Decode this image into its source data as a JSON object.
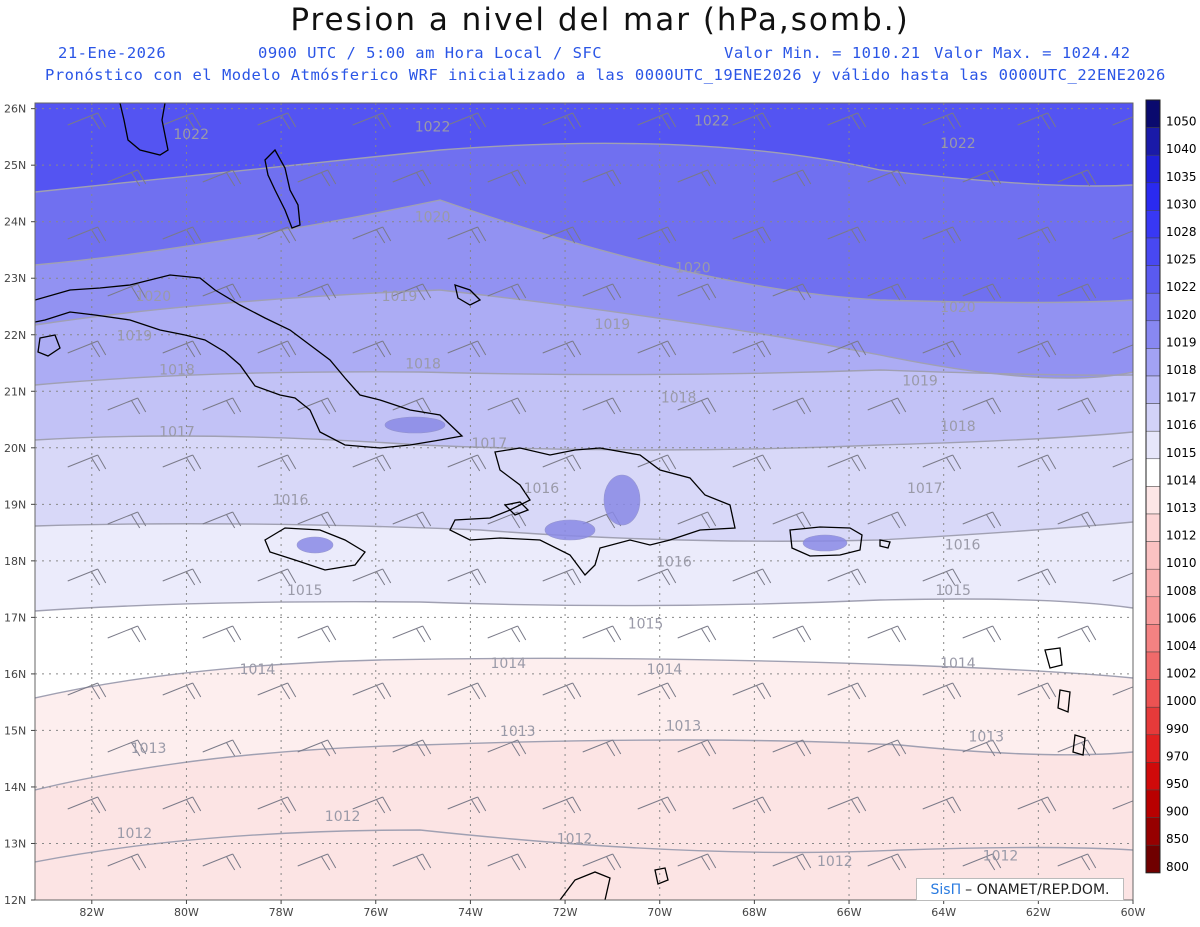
{
  "title": "Presion a nivel del mar (hPa,somb.)",
  "subtitle": {
    "date": "21-Ene-2026",
    "time": "0900 UTC / 5:00 am Hora Local / SFC",
    "valmin": "Valor Min. = 1010.21",
    "valmax": "Valor Max. = 1024.42",
    "model": "Pronóstico con el Modelo Atmósferico WRF inicializado a las 0000UTC_19ENE2026 y válido hasta las  0000UTC_22ENE2026"
  },
  "axes": {
    "lat_labels": [
      "26N",
      "25N",
      "24N",
      "23N",
      "22N",
      "21N",
      "20N",
      "19N",
      "18N",
      "17N",
      "16N",
      "15N",
      "14N",
      "13N",
      "12N"
    ],
    "lon_labels": [
      "82W",
      "80W",
      "78W",
      "76W",
      "74W",
      "72W",
      "70W",
      "68W",
      "66W",
      "64W",
      "62W",
      "60W"
    ]
  },
  "colorbar": {
    "levels": [
      "1050",
      "1040",
      "1035",
      "1030",
      "1028",
      "1025",
      "1022",
      "1020",
      "1019",
      "1018",
      "1017",
      "1016",
      "1015",
      "1014",
      "1013",
      "1012",
      "1010",
      "1008",
      "1006",
      "1004",
      "1002",
      "1000",
      "990",
      "970",
      "950",
      "900",
      "850",
      "800"
    ],
    "colors": [
      "#0a0a6e",
      "#1a1aa8",
      "#2020d8",
      "#2a2af0",
      "#3838f4",
      "#4848f2",
      "#5a5af0",
      "#6e6ef0",
      "#8888f2",
      "#a2a2f4",
      "#babaf6",
      "#d2d2f8",
      "#e6e6fa",
      "#ffffff",
      "#fde6e6",
      "#fcd4d4",
      "#fbc2c2",
      "#f9b0b0",
      "#f79a9a",
      "#f48282",
      "#f06a6a",
      "#ec5252",
      "#e63a3a",
      "#e02020",
      "#d00a0a",
      "#b80000",
      "#960000",
      "#700000"
    ]
  },
  "contour_labels": [
    {
      "text": "1022",
      "lon": -79.9,
      "lat": 25.46
    },
    {
      "text": "1022",
      "lon": -74.8,
      "lat": 25.6
    },
    {
      "text": "1022",
      "lon": -68.9,
      "lat": 25.7
    },
    {
      "text": "1022",
      "lon": -63.7,
      "lat": 25.3
    },
    {
      "text": "1020",
      "lon": -74.8,
      "lat": 24.0
    },
    {
      "text": "1020",
      "lon": -69.3,
      "lat": 23.1
    },
    {
      "text": "1020",
      "lon": -63.7,
      "lat": 22.4
    },
    {
      "text": "1020",
      "lon": -80.7,
      "lat": 22.6
    },
    {
      "text": "1019",
      "lon": -75.5,
      "lat": 22.6
    },
    {
      "text": "1019",
      "lon": -71.0,
      "lat": 22.1
    },
    {
      "text": "1019",
      "lon": -64.5,
      "lat": 21.1
    },
    {
      "text": "1019",
      "lon": -81.1,
      "lat": 21.9
    },
    {
      "text": "1018",
      "lon": -80.2,
      "lat": 21.3
    },
    {
      "text": "1018",
      "lon": -75.0,
      "lat": 21.4
    },
    {
      "text": "1018",
      "lon": -69.6,
      "lat": 20.8
    },
    {
      "text": "1018",
      "lon": -63.7,
      "lat": 20.3
    },
    {
      "text": "1017",
      "lon": -80.2,
      "lat": 20.2
    },
    {
      "text": "1017",
      "lon": -73.6,
      "lat": 20.0
    },
    {
      "text": "1017",
      "lon": -64.4,
      "lat": 19.2
    },
    {
      "text": "1016",
      "lon": -77.8,
      "lat": 19.0
    },
    {
      "text": "1016",
      "lon": -72.5,
      "lat": 19.2
    },
    {
      "text": "1016",
      "lon": -69.7,
      "lat": 17.9
    },
    {
      "text": "1016",
      "lon": -63.6,
      "lat": 18.2
    },
    {
      "text": "1015",
      "lon": -77.5,
      "lat": 17.4
    },
    {
      "text": "1015",
      "lon": -70.3,
      "lat": 16.8
    },
    {
      "text": "1015",
      "lon": -63.8,
      "lat": 17.4
    },
    {
      "text": "1014",
      "lon": -78.5,
      "lat": 16.0
    },
    {
      "text": "1014",
      "lon": -73.2,
      "lat": 16.1
    },
    {
      "text": "1014",
      "lon": -69.9,
      "lat": 16.0
    },
    {
      "text": "1014",
      "lon": -63.7,
      "lat": 16.1
    },
    {
      "text": "1013",
      "lon": -80.8,
      "lat": 14.6
    },
    {
      "text": "1013",
      "lon": -73.0,
      "lat": 14.9
    },
    {
      "text": "1013",
      "lon": -69.5,
      "lat": 15.0
    },
    {
      "text": "1013",
      "lon": -63.1,
      "lat": 14.8
    },
    {
      "text": "1012",
      "lon": -81.1,
      "lat": 13.1
    },
    {
      "text": "1012",
      "lon": -76.7,
      "lat": 13.4
    },
    {
      "text": "1012",
      "lon": -71.8,
      "lat": 13.0
    },
    {
      "text": "1012",
      "lon": -66.3,
      "lat": 12.6
    },
    {
      "text": "1012",
      "lon": -62.8,
      "lat": 12.7
    }
  ],
  "credit": {
    "logo": "SisΠ",
    "text": "– ONAMET/REP.DOM."
  }
}
